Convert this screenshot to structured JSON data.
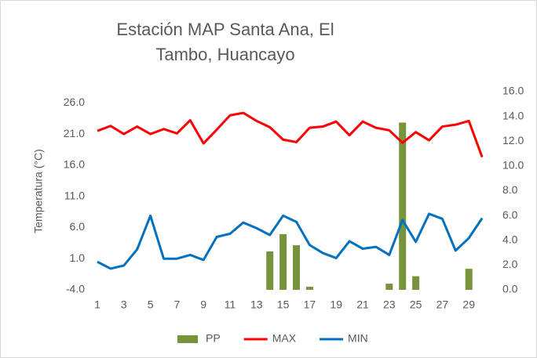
{
  "chart_data": {
    "type": "combo",
    "title": "Estación MAP Santa Ana, El Tambo, Huancayo",
    "y_label": "Temperatura (°C)",
    "categories": [
      1,
      null,
      3,
      null,
      5,
      null,
      7,
      null,
      9,
      null,
      11,
      null,
      13,
      null,
      15,
      null,
      17,
      null,
      19,
      null,
      21,
      null,
      23,
      null,
      25,
      null,
      27,
      null,
      29,
      null
    ],
    "series": [
      {
        "name": "PP",
        "type": "bar",
        "axis": "y2",
        "color": "#77933c",
        "values": [
          0,
          0,
          0,
          0,
          0,
          0,
          0,
          0,
          0,
          0,
          0,
          0,
          0,
          3.1,
          4.5,
          3.6,
          0.25,
          0,
          0,
          0,
          0,
          0,
          0.5,
          13.5,
          1.1,
          0,
          0,
          0,
          1.7,
          0
        ]
      },
      {
        "name": "MAX",
        "type": "line",
        "color": "#ff0000",
        "values": [
          21.5,
          22.3,
          21,
          22.2,
          21,
          21.8,
          21.1,
          23.2,
          19.5,
          21.7,
          24,
          24.4,
          23.1,
          22.1,
          20.1,
          19.7,
          22,
          22.2,
          23,
          20.8,
          23,
          22,
          21.6,
          19.6,
          21.3,
          20,
          22.2,
          22.5,
          23.1,
          17.3
        ]
      },
      {
        "name": "MIN",
        "type": "line",
        "color": "#0070c0",
        "values": [
          0.5,
          -0.6,
          -0.1,
          2.5,
          7.9,
          1,
          1,
          1.6,
          0.8,
          4.5,
          5,
          6.8,
          5.9,
          4.8,
          7.9,
          6.9,
          3.2,
          1.9,
          1.1,
          3.8,
          2.6,
          2.9,
          1.6,
          7.2,
          3.7,
          8.2,
          7.4,
          2.3,
          4.3,
          7.5
        ]
      }
    ],
    "ylim": [
      -4,
      27.8
    ],
    "yticks": [
      {
        "value": -4,
        "label": "-4.0"
      },
      {
        "value": 1,
        "label": "1.0"
      },
      {
        "value": 6,
        "label": "6.0"
      },
      {
        "value": 11,
        "label": "11.0"
      },
      {
        "value": 16,
        "label": "16.0"
      },
      {
        "value": 21,
        "label": "21.0"
      },
      {
        "value": 26,
        "label": "26.0"
      }
    ],
    "y2lim": [
      0,
      16
    ],
    "y2ticks": [
      {
        "value": 0,
        "label": "0.0"
      },
      {
        "value": 2,
        "label": "2.0"
      },
      {
        "value": 4,
        "label": "4.0"
      },
      {
        "value": 6,
        "label": "6.0"
      },
      {
        "value": 8,
        "label": "8.0"
      },
      {
        "value": 10,
        "label": "10.0"
      },
      {
        "value": 12,
        "label": "12.0"
      },
      {
        "value": 14,
        "label": "14.0"
      },
      {
        "value": 16,
        "label": "16.0"
      }
    ],
    "legend": "bottom"
  }
}
